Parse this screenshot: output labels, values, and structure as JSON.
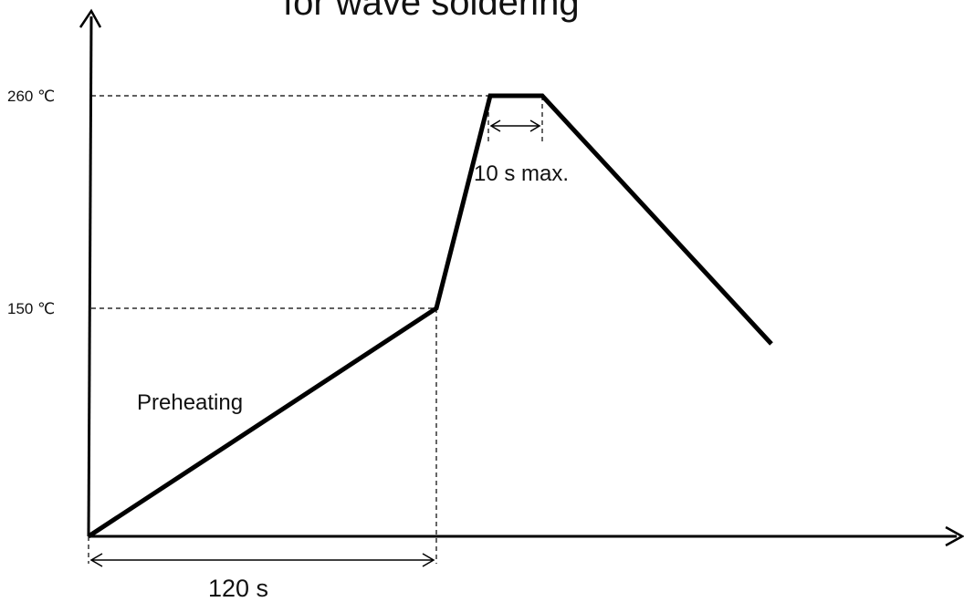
{
  "title": "for wave soldering",
  "y_levels": [
    {
      "label": "260 ℃",
      "value": 260
    },
    {
      "label": "150 ℃",
      "value": 150
    }
  ],
  "annotations": {
    "peak_duration": "10 s max.",
    "preheating": "Preheating",
    "preheat_duration": "120 s"
  },
  "colors": {
    "line": "#000000",
    "text": "#111111"
  }
}
